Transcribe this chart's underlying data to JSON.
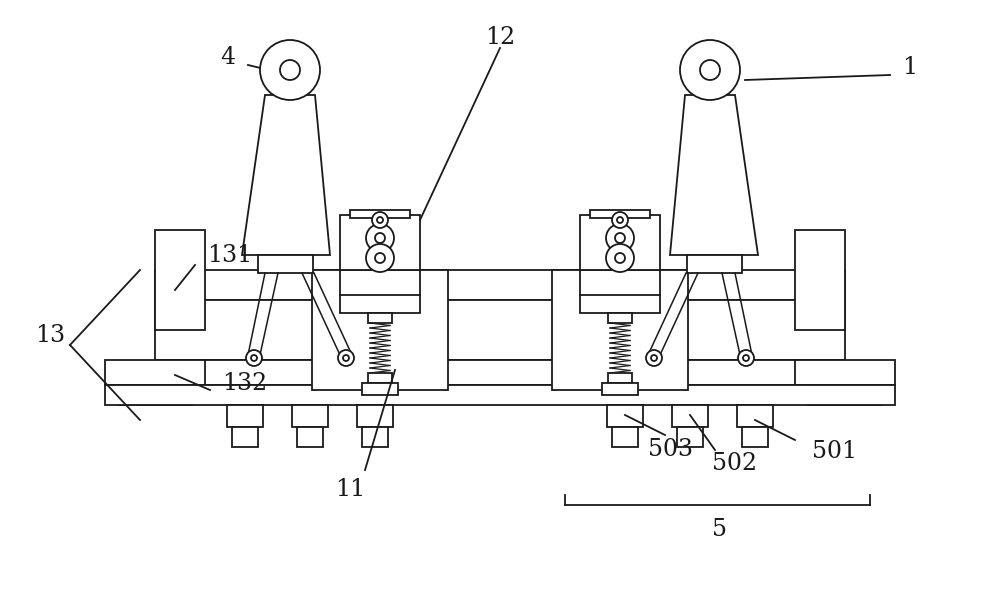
{
  "bg_color": "#ffffff",
  "line_color": "#1a1a1a",
  "lw": 1.3,
  "fig_width": 10.0,
  "fig_height": 6.11,
  "label_fontsize": 15
}
